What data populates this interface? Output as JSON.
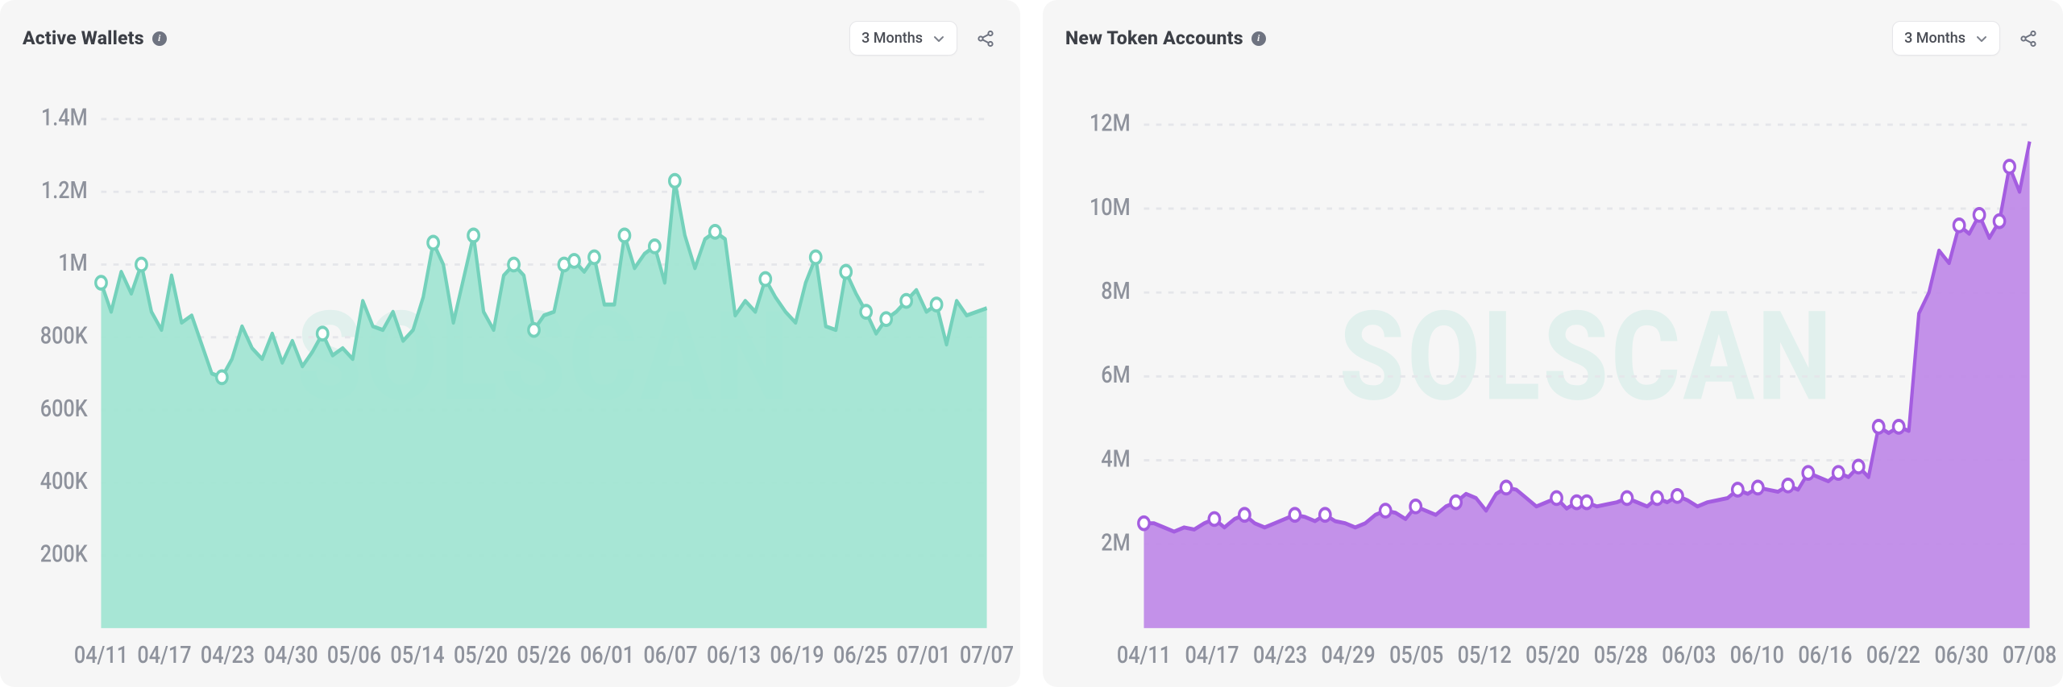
{
  "charts": [
    {
      "id": "active-wallets",
      "title": "Active Wallets",
      "range_label": "3 Months",
      "watermark": "SOLSCAN",
      "type": "area",
      "background_color": "#f6f6f6",
      "fill_color": "#9ee4d1",
      "stroke_color": "#74d1bb",
      "marker_stroke": "#74d1bb",
      "marker_fill": "#ffffff",
      "grid_color": "#e5e6ea",
      "label_color": "#8e929c",
      "label_fontsize": 15,
      "stroke_width": 2.5,
      "marker_radius": 4,
      "y_ticks": [
        {
          "value": 200000,
          "label": "200K"
        },
        {
          "value": 400000,
          "label": "400K"
        },
        {
          "value": 600000,
          "label": "600K"
        },
        {
          "value": 800000,
          "label": "800K"
        },
        {
          "value": 1000000,
          "label": "1M"
        },
        {
          "value": 1200000,
          "label": "1.2M"
        },
        {
          "value": 1400000,
          "label": "1.4M"
        }
      ],
      "ylim": [
        0,
        1500000
      ],
      "x_labels": [
        "04/11",
        "04/17",
        "04/23",
        "04/30",
        "05/06",
        "05/14",
        "05/20",
        "05/26",
        "06/01",
        "06/07",
        "06/13",
        "06/19",
        "06/25",
        "07/01",
        "07/07"
      ],
      "values": [
        950000,
        870000,
        980000,
        920000,
        1000000,
        870000,
        820000,
        970000,
        840000,
        860000,
        780000,
        700000,
        690000,
        740000,
        830000,
        770000,
        740000,
        810000,
        730000,
        790000,
        720000,
        760000,
        810000,
        750000,
        770000,
        740000,
        900000,
        830000,
        820000,
        870000,
        790000,
        820000,
        910000,
        1060000,
        1000000,
        840000,
        960000,
        1080000,
        870000,
        820000,
        970000,
        1000000,
        970000,
        820000,
        860000,
        870000,
        1000000,
        1010000,
        980000,
        1020000,
        890000,
        890000,
        1080000,
        990000,
        1030000,
        1050000,
        950000,
        1230000,
        1080000,
        990000,
        1070000,
        1090000,
        1070000,
        860000,
        900000,
        870000,
        960000,
        910000,
        870000,
        840000,
        950000,
        1020000,
        830000,
        820000,
        980000,
        920000,
        870000,
        810000,
        850000,
        870000,
        900000,
        930000,
        870000,
        890000,
        780000,
        900000,
        860000,
        870000,
        880000
      ],
      "markers": [
        {
          "index": 0,
          "value": 950000
        },
        {
          "index": 4,
          "value": 1000000
        },
        {
          "index": 12,
          "value": 690000
        },
        {
          "index": 22,
          "value": 810000
        },
        {
          "index": 33,
          "value": 1060000
        },
        {
          "index": 37,
          "value": 1080000
        },
        {
          "index": 41,
          "value": 1000000
        },
        {
          "index": 43,
          "value": 820000
        },
        {
          "index": 46,
          "value": 1000000
        },
        {
          "index": 47,
          "value": 1010000
        },
        {
          "index": 49,
          "value": 1020000
        },
        {
          "index": 52,
          "value": 1080000
        },
        {
          "index": 55,
          "value": 1050000
        },
        {
          "index": 57,
          "value": 1230000
        },
        {
          "index": 61,
          "value": 1090000
        },
        {
          "index": 66,
          "value": 960000
        },
        {
          "index": 71,
          "value": 1020000
        },
        {
          "index": 74,
          "value": 980000
        },
        {
          "index": 76,
          "value": 870000
        },
        {
          "index": 78,
          "value": 850000
        },
        {
          "index": 80,
          "value": 900000
        },
        {
          "index": 83,
          "value": 890000
        }
      ]
    },
    {
      "id": "new-token-accounts",
      "title": "New Token Accounts",
      "range_label": "3 Months",
      "watermark": "SOLSCAN",
      "type": "area",
      "background_color": "#f6f6f6",
      "fill_color": "#be86e8",
      "stroke_color": "#a45de0",
      "marker_stroke": "#a45de0",
      "marker_fill": "#ffffff",
      "grid_color": "#e5e6ea",
      "label_color": "#8e929c",
      "label_fontsize": 15,
      "stroke_width": 2.5,
      "marker_radius": 4,
      "y_ticks": [
        {
          "value": 2000000,
          "label": "2M"
        },
        {
          "value": 4000000,
          "label": "4M"
        },
        {
          "value": 6000000,
          "label": "6M"
        },
        {
          "value": 8000000,
          "label": "8M"
        },
        {
          "value": 10000000,
          "label": "10M"
        },
        {
          "value": 12000000,
          "label": "12M"
        }
      ],
      "ylim": [
        0,
        13000000
      ],
      "x_labels": [
        "04/11",
        "04/17",
        "04/23",
        "04/29",
        "05/05",
        "05/12",
        "05/20",
        "05/28",
        "06/03",
        "06/10",
        "06/16",
        "06/22",
        "06/30",
        "07/08"
      ],
      "values": [
        2500000,
        2500000,
        2400000,
        2300000,
        2400000,
        2350000,
        2500000,
        2600000,
        2400000,
        2600000,
        2700000,
        2500000,
        2400000,
        2500000,
        2600000,
        2700000,
        2650000,
        2550000,
        2700000,
        2550000,
        2500000,
        2400000,
        2500000,
        2700000,
        2800000,
        2750000,
        2600000,
        2900000,
        2800000,
        2700000,
        2900000,
        3000000,
        3200000,
        3100000,
        2800000,
        3200000,
        3350000,
        3300000,
        3100000,
        2900000,
        3000000,
        3100000,
        2850000,
        3000000,
        3000000,
        2900000,
        2950000,
        3000000,
        3100000,
        3000000,
        2900000,
        3100000,
        3000000,
        3150000,
        3050000,
        2900000,
        3000000,
        3050000,
        3100000,
        3300000,
        3200000,
        3350000,
        3300000,
        3250000,
        3400000,
        3300000,
        3700000,
        3600000,
        3500000,
        3700000,
        3600000,
        3850000,
        3600000,
        4800000,
        4650000,
        4800000,
        4700000,
        7500000,
        8000000,
        9000000,
        8700000,
        9600000,
        9400000,
        9850000,
        9300000,
        9700000,
        11000000,
        10400000,
        11600000
      ],
      "markers": [
        {
          "index": 0,
          "value": 2500000
        },
        {
          "index": 7,
          "value": 2600000
        },
        {
          "index": 10,
          "value": 2700000
        },
        {
          "index": 15,
          "value": 2700000
        },
        {
          "index": 18,
          "value": 2700000
        },
        {
          "index": 24,
          "value": 2800000
        },
        {
          "index": 27,
          "value": 2900000
        },
        {
          "index": 31,
          "value": 3000000
        },
        {
          "index": 36,
          "value": 3350000
        },
        {
          "index": 41,
          "value": 3100000
        },
        {
          "index": 43,
          "value": 3000000
        },
        {
          "index": 44,
          "value": 3000000
        },
        {
          "index": 48,
          "value": 3100000
        },
        {
          "index": 51,
          "value": 3100000
        },
        {
          "index": 53,
          "value": 3150000
        },
        {
          "index": 59,
          "value": 3300000
        },
        {
          "index": 61,
          "value": 3350000
        },
        {
          "index": 64,
          "value": 3400000
        },
        {
          "index": 66,
          "value": 3700000
        },
        {
          "index": 69,
          "value": 3700000
        },
        {
          "index": 71,
          "value": 3850000
        },
        {
          "index": 73,
          "value": 4800000
        },
        {
          "index": 75,
          "value": 4800000
        },
        {
          "index": 81,
          "value": 9600000
        },
        {
          "index": 83,
          "value": 9850000
        },
        {
          "index": 85,
          "value": 9700000
        },
        {
          "index": 86,
          "value": 11000000
        }
      ]
    }
  ]
}
